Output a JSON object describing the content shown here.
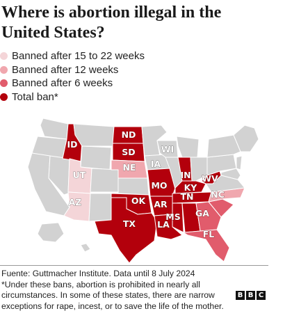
{
  "title": "Where is abortion illegal in the United States?",
  "legend": [
    {
      "label": "Banned after 15 to 22 weeks",
      "color": "#f4d5d8"
    },
    {
      "label": "Banned after 12 weeks",
      "color": "#f0a7ae"
    },
    {
      "label": "Banned after 6 weeks",
      "color": "#e15c6c"
    },
    {
      "label": "Total ban*",
      "color": "#b3000c"
    }
  ],
  "colors": {
    "other_states": "#d2d2d2",
    "state_border": "#ffffff"
  },
  "state_labels": {
    "ID": "ID",
    "ND": "ND",
    "SD": "SD",
    "WI": "WI",
    "NE": "NE",
    "IA": "IA",
    "IN": "IN",
    "WV": "WV",
    "UT": "UT",
    "MO": "MO",
    "KY": "KY",
    "NC": "NC",
    "AZ": "AZ",
    "OK": "OK",
    "AR": "AR",
    "TN": "TN",
    "GA": "GA",
    "TX": "TX",
    "MS": "MS",
    "LA": "LA",
    "FL": "FL"
  },
  "footer": {
    "source": "Fuente: Guttmacher Institute. Data until 8 July 2024",
    "note": "*Under these bans, abortion is prohibited in nearly all circumstances. In some of these states, there are narrow exceptions for rape, incest, or to save the life of the mother."
  },
  "logo": [
    "B",
    "B",
    "C"
  ]
}
